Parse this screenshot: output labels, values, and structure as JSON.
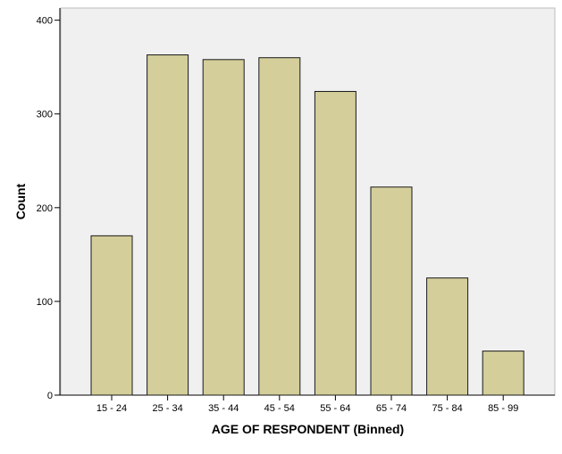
{
  "chart_data": {
    "type": "bar",
    "categories": [
      "15 - 24",
      "25 - 34",
      "35 - 44",
      "45 - 54",
      "55 - 64",
      "65 - 74",
      "75 - 84",
      "85 - 99"
    ],
    "values": [
      170,
      363,
      358,
      360,
      324,
      222,
      125,
      47
    ],
    "xlabel": "AGE OF RESPONDENT (Binned)",
    "ylabel": "Count",
    "ylim": [
      0,
      413
    ],
    "yticks": [
      0,
      100,
      200,
      300,
      400
    ],
    "grid": false,
    "legend": "none",
    "colors": {
      "bar_fill": "#d3ce9a",
      "bar_stroke": "#1a1a1a",
      "plot_background": "#f0f0f0",
      "axis": "#000000",
      "text": "#000000"
    }
  }
}
